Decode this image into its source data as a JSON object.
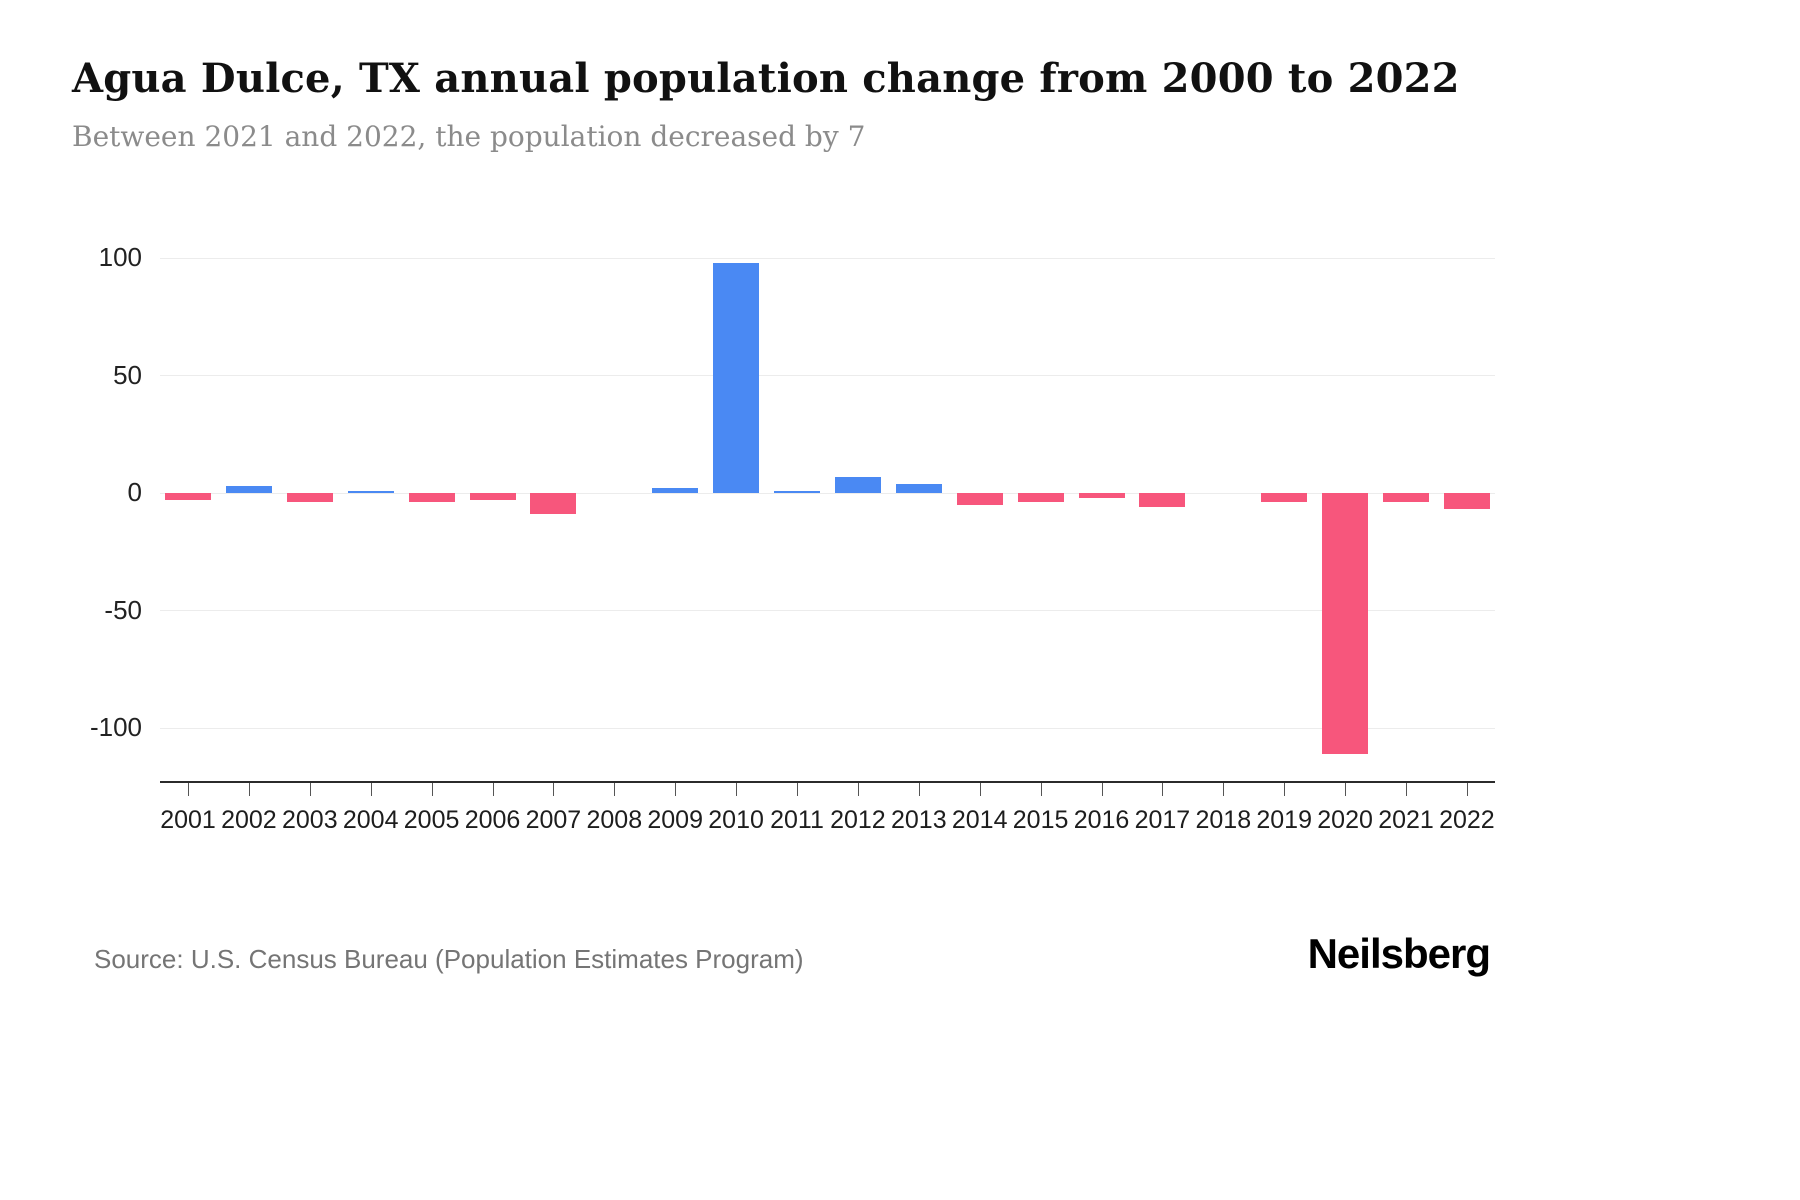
{
  "header": {
    "title": "Agua Dulce, TX annual population change from 2000 to 2022",
    "subtitle": "Between 2021 and 2022, the population decreased by 7"
  },
  "footer": {
    "source": "Source: U.S. Census Bureau (Population Estimates Program)",
    "brand": "Neilsberg"
  },
  "chart_data": {
    "type": "bar",
    "title": "Agua Dulce, TX annual population change from 2000 to 2022",
    "subtitle": "Between 2021 and 2022, the population decreased by 7",
    "categories": [
      "2001",
      "2002",
      "2003",
      "2004",
      "2005",
      "2006",
      "2007",
      "2008",
      "2009",
      "2010",
      "2011",
      "2012",
      "2013",
      "2014",
      "2015",
      "2016",
      "2017",
      "2018",
      "2019",
      "2020",
      "2021",
      "2022"
    ],
    "values": [
      -3,
      3,
      -4,
      1,
      -4,
      -3,
      -9,
      0,
      2,
      98,
      1,
      7,
      4,
      -5,
      -4,
      -2,
      -6,
      0,
      -4,
      -111,
      -4,
      -7
    ],
    "xlabel": "",
    "ylabel": "",
    "ylim": [
      -124,
      112
    ],
    "yticks": [
      100,
      50,
      0,
      -50,
      -100
    ],
    "grid": true,
    "legend": "none",
    "colors": {
      "positive": "#4a89f3",
      "negative": "#f7567c",
      "gridline": "#ececec",
      "axis": "#2b2b2b"
    }
  }
}
